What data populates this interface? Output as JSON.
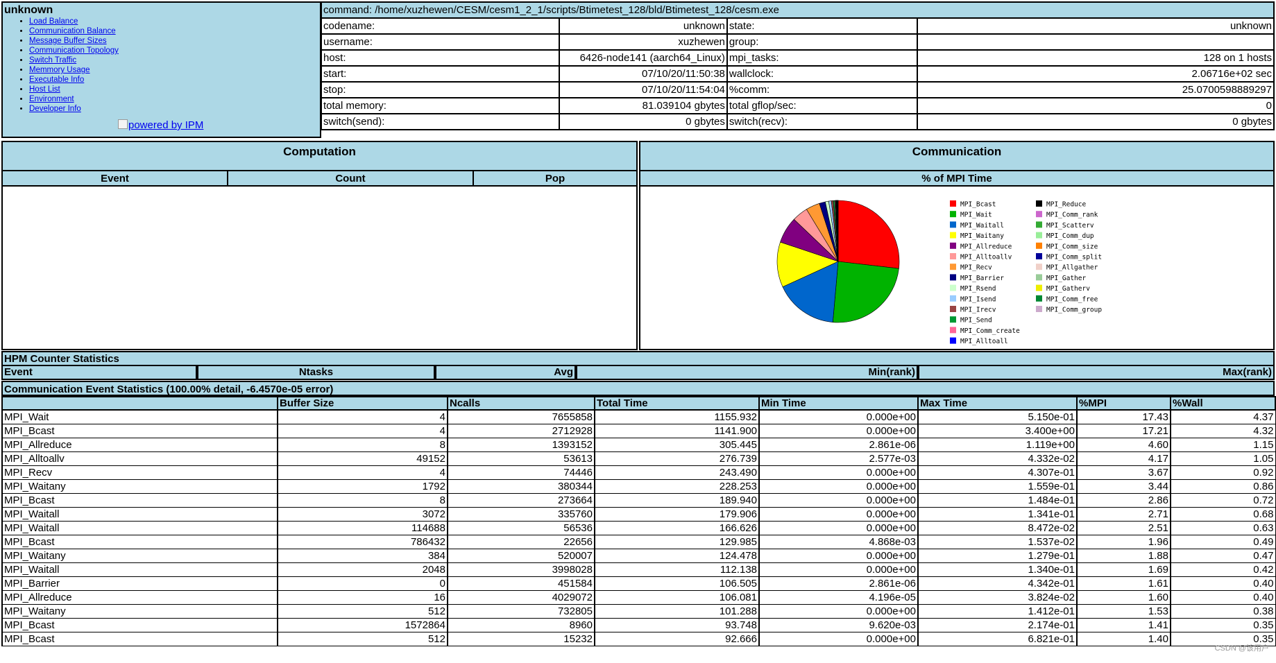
{
  "left_panel": {
    "title": "unknown",
    "links": [
      "Load Balance",
      "Communication Balance",
      "Message Buffer Sizes",
      "Communication Topology",
      "Switch Traffic",
      "Memmory Usage",
      "Executable Info",
      "Host List",
      "Environment",
      "Developer Info"
    ],
    "powered": "powered by IPM"
  },
  "info": {
    "command": "command: /home/xuzhewen/CESM/cesm1_2_1/scripts/Btimetest_128/bld/Btimetest_128/cesm.exe",
    "rows": [
      {
        "l1": "codename:",
        "v1": "unknown",
        "l2": "state:",
        "v2": "unknown"
      },
      {
        "l1": "username:",
        "v1": "xuzhewen",
        "l2": "group:",
        "v2": ""
      },
      {
        "l1": "host:",
        "v1": "6426-node141 (aarch64_Linux)",
        "l2": "mpi_tasks:",
        "v2": "128 on 1 hosts"
      },
      {
        "l1": "start:",
        "v1": "07/10/20/11:50:38",
        "l2": "wallclock:",
        "v2": "2.06716e+02 sec"
      },
      {
        "l1": "stop:",
        "v1": "07/10/20/11:54:04",
        "l2": "%comm:",
        "v2": "25.0700598889297"
      },
      {
        "l1": "total memory:",
        "v1": "81.039104 gbytes",
        "l2": "total gflop/sec:",
        "v2": "0"
      },
      {
        "l1": "switch(send):",
        "v1": "0 gbytes",
        "l2": "switch(recv):",
        "v2": "0 gbytes"
      }
    ]
  },
  "computation": {
    "title": "Computation",
    "cols": [
      "Event",
      "Count",
      "Pop"
    ]
  },
  "communication": {
    "title": "Communication",
    "sub": "% of MPI Time"
  },
  "chart_data": {
    "type": "pie",
    "slices": [
      {
        "name": "MPI_Bcast",
        "value": 26.9,
        "color": "#ff0000"
      },
      {
        "name": "MPI_Wait",
        "value": 24.6,
        "color": "#00b300"
      },
      {
        "name": "MPI_Waitall",
        "value": 16.8,
        "color": "#0066cc"
      },
      {
        "name": "MPI_Waitany",
        "value": 12.0,
        "color": "#ffff00"
      },
      {
        "name": "MPI_Allreduce",
        "value": 7.0,
        "color": "#800080"
      },
      {
        "name": "MPI_Alltoallv",
        "value": 4.2,
        "color": "#ff9999"
      },
      {
        "name": "MPI_Recv",
        "value": 3.7,
        "color": "#ff9933"
      },
      {
        "name": "MPI_Barrier",
        "value": 1.6,
        "color": "#000080"
      },
      {
        "name": "MPI_Rsend",
        "value": 0.9,
        "color": "#ccffcc"
      },
      {
        "name": "MPI_Isend",
        "value": 0.7,
        "color": "#99ccff"
      },
      {
        "name": "MPI_Irecv",
        "value": 0.5,
        "color": "#994444"
      },
      {
        "name": "MPI_Send",
        "value": 0.4,
        "color": "#009933"
      },
      {
        "name": "MPI_Comm_create",
        "value": 0.2,
        "color": "#ff6699"
      },
      {
        "name": "MPI_Alltoall",
        "value": 0.1,
        "color": "#0000ff"
      },
      {
        "name": "MPI_Reduce",
        "value": 0.1,
        "color": "#000000"
      },
      {
        "name": "MPI_Comm_rank",
        "value": 0.05,
        "color": "#cc66cc"
      },
      {
        "name": "MPI_Scatterv",
        "value": 0.05,
        "color": "#33aa33"
      },
      {
        "name": "MPI_Comm_dup",
        "value": 0.05,
        "color": "#99ee99"
      },
      {
        "name": "MPI_Comm_size",
        "value": 0.05,
        "color": "#ff8000"
      },
      {
        "name": "MPI_Comm_split",
        "value": 0.05,
        "color": "#000099"
      },
      {
        "name": "MPI_Allgather",
        "value": 0.05,
        "color": "#f0d0c8"
      },
      {
        "name": "MPI_Gather",
        "value": 0.05,
        "color": "#99cc99"
      },
      {
        "name": "MPI_Gatherv",
        "value": 0.05,
        "color": "#eeee00"
      },
      {
        "name": "MPI_Comm_free",
        "value": 0.05,
        "color": "#008833"
      },
      {
        "name": "MPI_Comm_group",
        "value": 0.05,
        "color": "#ccaacc"
      }
    ]
  },
  "hpm": {
    "title": "HPM Counter Statistics",
    "cols": [
      "Event",
      "Ntasks",
      "Avg",
      "Min(rank)",
      "Max(rank)"
    ]
  },
  "ces": {
    "title": "Communication Event Statistics (100.00% detail, -6.4570e-05 error)",
    "cols": [
      "",
      "Buffer Size",
      "Ncalls",
      "Total Time",
      "Min Time",
      "Max Time",
      "%MPI",
      "%Wall"
    ],
    "rows": [
      [
        "MPI_Wait",
        "4",
        "7655858",
        "1155.932",
        "0.000e+00",
        "5.150e-01",
        "17.43",
        "4.37"
      ],
      [
        "MPI_Bcast",
        "4",
        "2712928",
        "1141.900",
        "0.000e+00",
        "3.400e+00",
        "17.21",
        "4.32"
      ],
      [
        "MPI_Allreduce",
        "8",
        "1393152",
        "305.445",
        "2.861e-06",
        "1.119e+00",
        "4.60",
        "1.15"
      ],
      [
        "MPI_Alltoallv",
        "49152",
        "53613",
        "276.739",
        "2.577e-03",
        "4.332e-02",
        "4.17",
        "1.05"
      ],
      [
        "MPI_Recv",
        "4",
        "74446",
        "243.490",
        "0.000e+00",
        "4.307e-01",
        "3.67",
        "0.92"
      ],
      [
        "MPI_Waitany",
        "1792",
        "380344",
        "228.253",
        "0.000e+00",
        "1.559e-01",
        "3.44",
        "0.86"
      ],
      [
        "MPI_Bcast",
        "8",
        "273664",
        "189.940",
        "0.000e+00",
        "1.484e-01",
        "2.86",
        "0.72"
      ],
      [
        "MPI_Waitall",
        "3072",
        "335760",
        "179.906",
        "0.000e+00",
        "1.341e-01",
        "2.71",
        "0.68"
      ],
      [
        "MPI_Waitall",
        "114688",
        "56536",
        "166.626",
        "0.000e+00",
        "8.472e-02",
        "2.51",
        "0.63"
      ],
      [
        "MPI_Bcast",
        "786432",
        "22656",
        "129.985",
        "4.868e-03",
        "1.537e-02",
        "1.96",
        "0.49"
      ],
      [
        "MPI_Waitany",
        "384",
        "520007",
        "124.478",
        "0.000e+00",
        "1.279e-01",
        "1.88",
        "0.47"
      ],
      [
        "MPI_Waitall",
        "2048",
        "3998028",
        "112.138",
        "0.000e+00",
        "1.340e-01",
        "1.69",
        "0.42"
      ],
      [
        "MPI_Barrier",
        "0",
        "451584",
        "106.505",
        "2.861e-06",
        "4.342e-01",
        "1.61",
        "0.40"
      ],
      [
        "MPI_Allreduce",
        "16",
        "4029072",
        "106.081",
        "4.196e-05",
        "3.824e-02",
        "1.60",
        "0.40"
      ],
      [
        "MPI_Waitany",
        "512",
        "732805",
        "101.288",
        "0.000e+00",
        "1.412e-01",
        "1.53",
        "0.38"
      ],
      [
        "MPI_Bcast",
        "1572864",
        "8960",
        "93.748",
        "9.620e-03",
        "2.174e-01",
        "1.41",
        "0.35"
      ],
      [
        "MPI_Bcast",
        "512",
        "15232",
        "92.666",
        "0.000e+00",
        "6.821e-01",
        "1.40",
        "0.35"
      ]
    ]
  },
  "watermark": "CSDN @该用户"
}
